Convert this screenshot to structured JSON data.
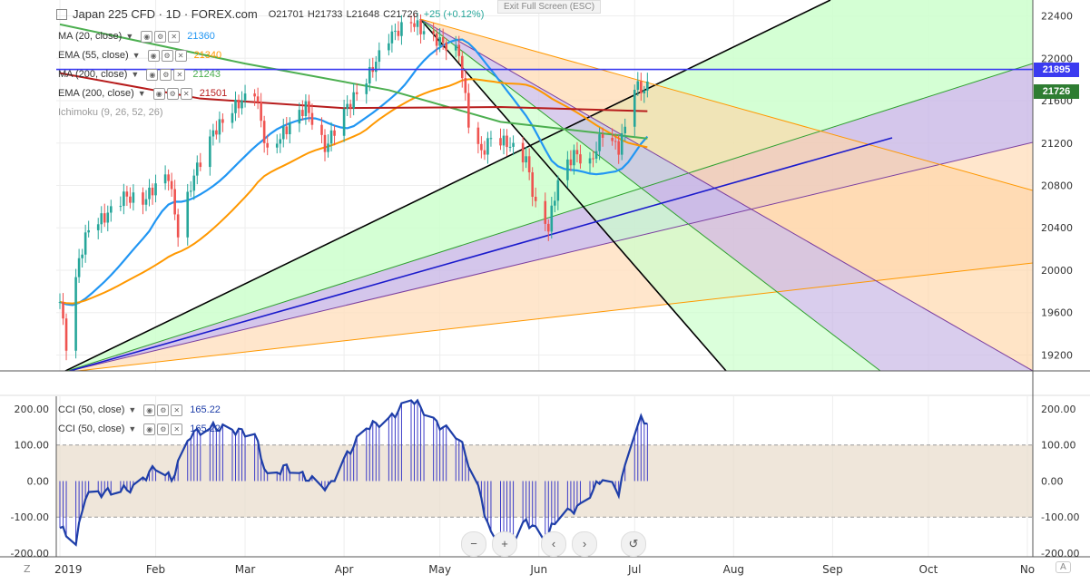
{
  "header": {
    "symbol_title": "Japan 225 CFD · 1D · FOREX.com",
    "open": "O21701",
    "high": "H21733",
    "low": "L21648",
    "close": "C21726",
    "change": "+25 (+0.12%)",
    "exit_fullscreen": "Exit Full Screen (ESC)"
  },
  "legend": [
    {
      "label": "MA (20, close)",
      "value": "21360",
      "color": "#2196f3"
    },
    {
      "label": "EMA (55, close)",
      "value": "21340",
      "color": "#ff9800"
    },
    {
      "label": "MA (200, close)",
      "value": "21243",
      "color": "#4caf50"
    },
    {
      "label": "EMA (200, close)",
      "value": "21501",
      "color": "#b71c1c"
    },
    {
      "label": "Ichimoku (9, 26, 52, 26)",
      "value": "",
      "color": "#999999"
    }
  ],
  "cci_legend": [
    {
      "label": "CCI (50, close)",
      "value": "165.22",
      "color": "#1e3ea8"
    },
    {
      "label": "CCI (50, close)",
      "value": "165.22",
      "color": "#1e3ea8"
    }
  ],
  "price_tags": {
    "line": "21895",
    "last": "21726",
    "line_color": "#3b3bf0",
    "last_color": "#2e7d32"
  },
  "nav_buttons": [
    "−",
    "+",
    "‹",
    "›",
    "↺"
  ],
  "corner_labels": {
    "bottom_left": "Z",
    "bottom_right": "A"
  },
  "chart_data": [
    {
      "type": "candlestick",
      "title": "Japan 225 CFD · 1D · FOREX.com",
      "x_tick_labels": [
        "2019",
        "Feb",
        "Mar",
        "Apr",
        "May",
        "Jun",
        "Jul",
        "Aug",
        "Sep",
        "Oct",
        "No"
      ],
      "y_tick_labels": [
        22400,
        22000,
        21600,
        21200,
        20800,
        20400,
        20000,
        19600,
        19200
      ],
      "ylim": [
        19050,
        22550
      ],
      "horizontal_line": 21895,
      "close_path": [
        [
          "2019-01-02",
          19700
        ],
        [
          "2019-01-04",
          19300
        ],
        [
          "2019-01-08",
          20100
        ],
        [
          "2019-01-11",
          20400
        ],
        [
          "2019-01-16",
          20500
        ],
        [
          "2019-01-22",
          20700
        ],
        [
          "2019-01-28",
          20650
        ],
        [
          "2019-02-01",
          20800
        ],
        [
          "2019-02-05",
          20900
        ],
        [
          "2019-02-08",
          20350
        ],
        [
          "2019-02-13",
          20900
        ],
        [
          "2019-02-19",
          21300
        ],
        [
          "2019-02-26",
          21550
        ],
        [
          "2019-03-04",
          21700
        ],
        [
          "2019-03-08",
          21100
        ],
        [
          "2019-03-13",
          21300
        ],
        [
          "2019-03-20",
          21550
        ],
        [
          "2019-03-26",
          21150
        ],
        [
          "2019-04-01",
          21500
        ],
        [
          "2019-04-08",
          21800
        ],
        [
          "2019-04-15",
          22200
        ],
        [
          "2019-04-22",
          22350
        ],
        [
          "2019-04-26",
          22250
        ],
        [
          "2019-05-07",
          22050
        ],
        [
          "2019-05-10",
          21400
        ],
        [
          "2019-05-14",
          21100
        ],
        [
          "2019-05-17",
          21250
        ],
        [
          "2019-05-22",
          21200
        ],
        [
          "2019-05-28",
          21050
        ],
        [
          "2019-05-31",
          20600
        ],
        [
          "2019-06-04",
          20400
        ],
        [
          "2019-06-07",
          20850
        ],
        [
          "2019-06-12",
          21100
        ],
        [
          "2019-06-17",
          21000
        ],
        [
          "2019-06-21",
          21300
        ],
        [
          "2019-06-26",
          21150
        ],
        [
          "2019-06-28",
          21350
        ],
        [
          "2019-07-01",
          21750
        ],
        [
          "2019-07-03",
          21700
        ],
        [
          "2019-07-05",
          21726
        ]
      ],
      "series": [
        {
          "name": "MA (20, close)",
          "last": 21360
        },
        {
          "name": "EMA (55, close)",
          "last": 21340
        },
        {
          "name": "MA (200, close)",
          "last": 21243
        },
        {
          "name": "EMA (200, close)",
          "last": 21501
        }
      ],
      "grid": true
    },
    {
      "type": "bar",
      "title": "CCI (50, close)",
      "y_tick_labels": [
        "200.00",
        "100.00",
        "0.00",
        "-100.00",
        "-200.00"
      ],
      "ylim": [
        -210,
        235
      ],
      "band": [
        -100,
        100
      ],
      "last": 165.22,
      "cci_path": [
        [
          "2019-01-02",
          -130
        ],
        [
          "2019-01-07",
          -170
        ],
        [
          "2019-01-10",
          -40
        ],
        [
          "2019-01-17",
          -30
        ],
        [
          "2019-01-25",
          -20
        ],
        [
          "2019-02-01",
          40
        ],
        [
          "2019-02-06",
          5
        ],
        [
          "2019-02-12",
          130
        ],
        [
          "2019-02-19",
          150
        ],
        [
          "2019-02-26",
          140
        ],
        [
          "2019-03-04",
          130
        ],
        [
          "2019-03-08",
          10
        ],
        [
          "2019-03-14",
          40
        ],
        [
          "2019-03-20",
          10
        ],
        [
          "2019-03-27",
          -20
        ],
        [
          "2019-04-01",
          60
        ],
        [
          "2019-04-08",
          150
        ],
        [
          "2019-04-15",
          170
        ],
        [
          "2019-04-22",
          230
        ],
        [
          "2019-04-30",
          160
        ],
        [
          "2019-05-07",
          120
        ],
        [
          "2019-05-13",
          -20
        ],
        [
          "2019-05-17",
          -150
        ],
        [
          "2019-05-22",
          -195
        ],
        [
          "2019-05-28",
          -110
        ],
        [
          "2019-06-03",
          -160
        ],
        [
          "2019-06-07",
          -100
        ],
        [
          "2019-06-14",
          -70
        ],
        [
          "2019-06-21",
          10
        ],
        [
          "2019-06-26",
          -30
        ],
        [
          "2019-07-01",
          140
        ],
        [
          "2019-07-03",
          170
        ],
        [
          "2019-07-05",
          165.22
        ]
      ]
    }
  ]
}
